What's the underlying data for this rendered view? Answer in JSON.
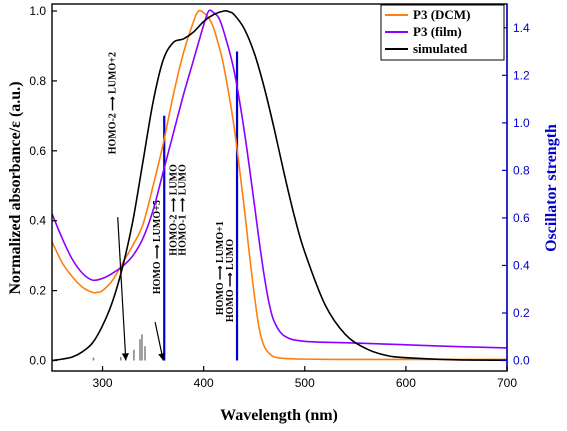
{
  "chart_data": {
    "type": "line",
    "xlabel": "Wavelength (nm)",
    "ylabel": "Normalized absorbance/ε (a.u.)",
    "y2label": "Oscillator strength",
    "xlim": [
      250,
      700
    ],
    "ylim": [
      -0.03,
      1.02
    ],
    "y2lim": [
      -0.0441,
      1.5
    ],
    "xticks": [
      300,
      400,
      500,
      600,
      700
    ],
    "yticks": [
      "0.0",
      "0.2",
      "0.4",
      "0.6",
      "0.8",
      "1.0"
    ],
    "y2ticks": [
      "0.0",
      "0.2",
      "0.4",
      "0.6",
      "0.8",
      "1.0",
      "1.2",
      "1.4"
    ],
    "grid": false,
    "legend_position": "top-right",
    "colors": {
      "dcm": "#ff7f0e",
      "film": "#8b00ff",
      "simulated": "#000000",
      "bars": "#0000cc",
      "minor_bars": "#888888",
      "axis_right": "#0000cc"
    },
    "series": [
      {
        "name": "P3 (DCM)",
        "x": [
          250,
          260,
          270,
          280,
          290,
          295,
          300,
          310,
          320,
          330,
          340,
          350,
          360,
          370,
          380,
          390,
          395,
          400,
          405,
          410,
          415,
          420,
          430,
          440,
          445,
          450,
          455,
          460,
          465,
          470,
          480,
          500,
          550,
          600,
          650,
          700
        ],
        "y": [
          0.34,
          0.28,
          0.24,
          0.21,
          0.195,
          0.195,
          0.2,
          0.23,
          0.28,
          0.33,
          0.39,
          0.5,
          0.62,
          0.76,
          0.88,
          0.97,
          1.0,
          0.995,
          0.98,
          0.95,
          0.9,
          0.84,
          0.67,
          0.44,
          0.31,
          0.19,
          0.09,
          0.04,
          0.02,
          0.01,
          0.006,
          0.004,
          0.003,
          0.003,
          0.003,
          0.003
        ]
      },
      {
        "name": "P3 (film)",
        "x": [
          250,
          260,
          270,
          280,
          290,
          300,
          310,
          320,
          330,
          340,
          350,
          360,
          370,
          380,
          390,
          400,
          405,
          410,
          415,
          420,
          430,
          440,
          450,
          455,
          460,
          465,
          470,
          480,
          500,
          550,
          600,
          650,
          700
        ],
        "y": [
          0.42,
          0.35,
          0.29,
          0.25,
          0.23,
          0.235,
          0.25,
          0.27,
          0.3,
          0.35,
          0.43,
          0.54,
          0.65,
          0.76,
          0.86,
          0.96,
          1.0,
          0.995,
          0.98,
          0.94,
          0.83,
          0.66,
          0.45,
          0.34,
          0.24,
          0.16,
          0.11,
          0.07,
          0.055,
          0.05,
          0.045,
          0.04,
          0.036
        ]
      },
      {
        "name": "simulated",
        "x": [
          250,
          260,
          270,
          280,
          290,
          300,
          310,
          320,
          330,
          340,
          350,
          360,
          370,
          380,
          390,
          400,
          410,
          420,
          425,
          430,
          440,
          450,
          460,
          470,
          480,
          490,
          500,
          520,
          540,
          560,
          580,
          600,
          650,
          700
        ],
        "y": [
          0.0,
          0.004,
          0.01,
          0.025,
          0.05,
          0.1,
          0.17,
          0.27,
          0.4,
          0.57,
          0.74,
          0.86,
          0.91,
          0.92,
          0.94,
          0.97,
          0.99,
          1.0,
          0.998,
          0.99,
          0.95,
          0.88,
          0.78,
          0.66,
          0.53,
          0.41,
          0.31,
          0.16,
          0.075,
          0.035,
          0.015,
          0.008,
          0.002,
          0.001
        ]
      }
    ],
    "oscillator_bars": [
      {
        "x": 291,
        "f": 0.012,
        "kind": "minor"
      },
      {
        "x": 318,
        "f": 0.015,
        "kind": "minor"
      },
      {
        "x": 331,
        "f": 0.045,
        "kind": "minor"
      },
      {
        "x": 337,
        "f": 0.09,
        "kind": "minor"
      },
      {
        "x": 339,
        "f": 0.11,
        "kind": "minor"
      },
      {
        "x": 342,
        "f": 0.06,
        "kind": "minor"
      },
      {
        "x": 361,
        "f": 1.03,
        "kind": "major"
      },
      {
        "x": 433,
        "f": 1.3,
        "kind": "major"
      }
    ],
    "annotations": [
      {
        "text": "HOMO-2 ⟶ LUMO+2",
        "x": 313,
        "y": 0.59
      },
      {
        "text": "HOMO ⟶ LUMO+5",
        "x": 357,
        "y": 0.19
      },
      {
        "text": "HOMO-2 ⟶ LUMO",
        "x": 373,
        "y": 0.3
      },
      {
        "text": "HOMO-1 ⟶ LUMO",
        "x": 382,
        "y": 0.3
      },
      {
        "text": "HOMO ⟶ LUMO+1",
        "x": 419,
        "y": 0.13
      },
      {
        "text": "HOMO ⟶ LUMO",
        "x": 429,
        "y": 0.11
      }
    ],
    "arrows": [
      {
        "from": [
          315,
          0.41
        ],
        "to": [
          323,
          0.0
        ]
      },
      {
        "from": [
          352,
          0.11
        ],
        "to": [
          360,
          0.0
        ]
      }
    ]
  }
}
